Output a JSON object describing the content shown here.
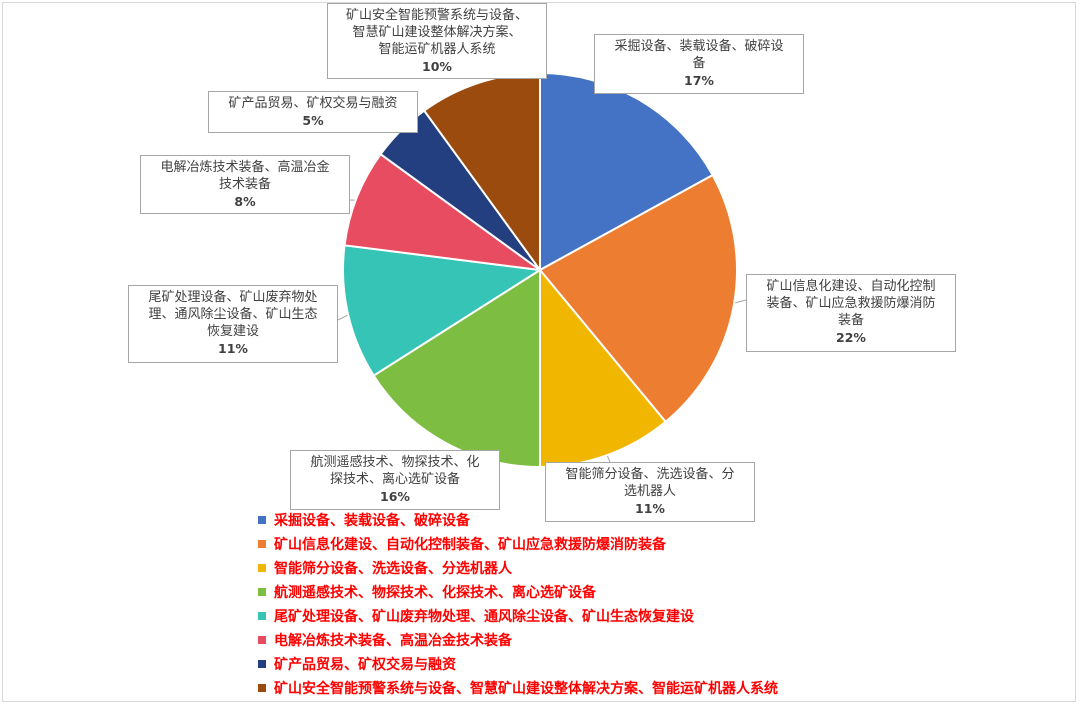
{
  "chart_data": {
    "type": "pie",
    "title": "",
    "legend_position": "bottom",
    "slices": [
      {
        "label": "采掘设备、装载设备、破碎设备",
        "callout": "采掘设备、装载设备、破碎设\n备",
        "value": 17,
        "pct_label": "17%",
        "color": "#4472c4"
      },
      {
        "label": "矿山信息化建设、自动化控制装备、矿山应急救援防爆消防装备",
        "callout": "矿山信息化建设、自动化控制\n装备、矿山应急救援防爆消防\n装备",
        "value": 22,
        "pct_label": "22%",
        "color": "#ed7d31"
      },
      {
        "label": "智能筛分设备、洗选设备、分选机器人",
        "callout": "智能筛分设备、洗选设备、分\n选机器人",
        "value": 11,
        "pct_label": "11%",
        "color": "#f1b700"
      },
      {
        "label": "航测遥感技术、物探技术、化探技术、离心选矿设备",
        "callout": "航测遥感技术、物探技术、化\n探技术、离心选矿设备",
        "value": 16,
        "pct_label": "16%",
        "color": "#7cbd42"
      },
      {
        "label": "尾矿处理设备、矿山废弃物处理、通风除尘设备、矿山生态恢复建设",
        "callout": "尾矿处理设备、矿山废弃物处\n理、通风除尘设备、矿山生态\n恢复建设",
        "value": 11,
        "pct_label": "11%",
        "color": "#35c4b5"
      },
      {
        "label": "电解冶炼技术装备、高温冶金技术装备",
        "callout": "电解冶炼技术装备、高温冶金\n技术装备",
        "value": 8,
        "pct_label": "8%",
        "color": "#e84c60"
      },
      {
        "label": "矿产品贸易、矿权交易与融资",
        "callout": "矿产品贸易、矿权交易与融资",
        "value": 5,
        "pct_label": "5%",
        "color": "#243f7f"
      },
      {
        "label": "矿山安全智能预警系统与设备、智慧矿山建设整体解决方案、智能运矿机器人系统",
        "callout": "矿山安全智能预警系统与设备、\n智慧矿山建设整体解决方案、\n智能运矿机器人系统",
        "value": 10,
        "pct_label": "10%",
        "color": "#9a4b0d"
      }
    ]
  }
}
